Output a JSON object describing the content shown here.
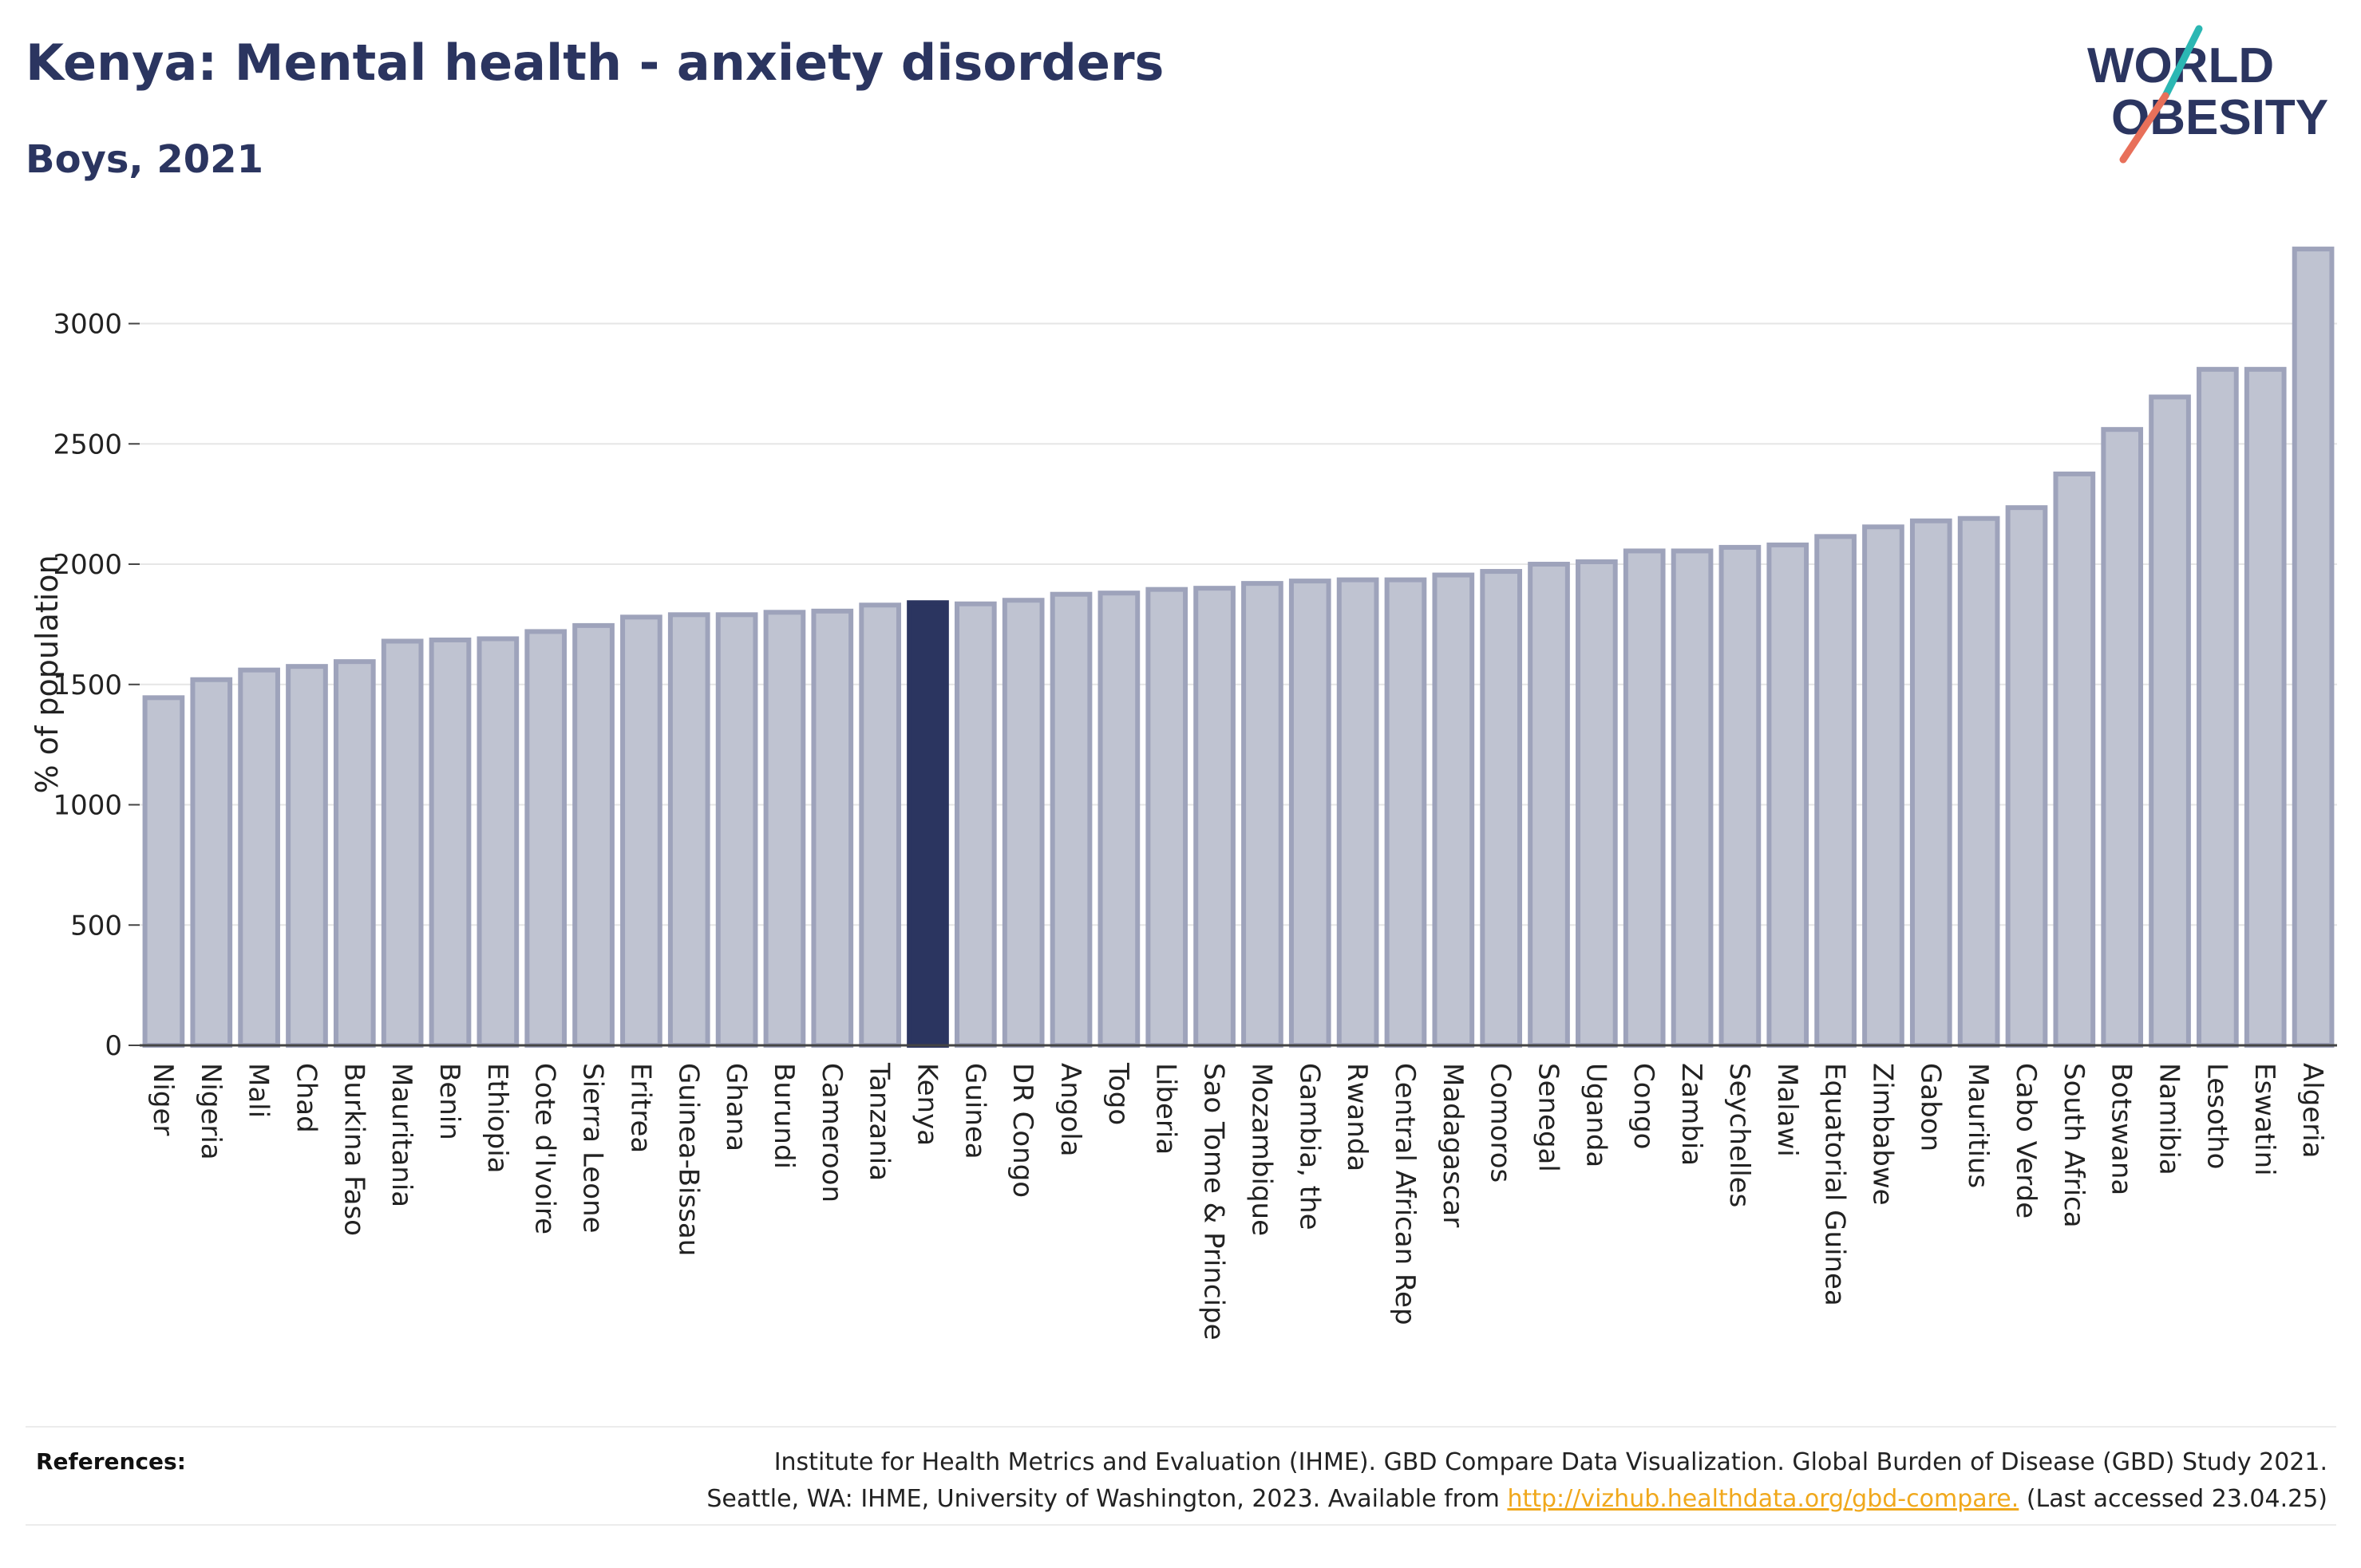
{
  "header": {
    "title": "Kenya: Mental health - anxiety disorders",
    "subtitle": "Boys, 2021"
  },
  "logo": {
    "line1": "WORLD",
    "line2": "OBESITY"
  },
  "references": {
    "label": "References:",
    "line1": "Institute for Health Metrics and Evaluation (IHME). GBD Compare Data Visualization. Global Burden of Disease (GBD) Study 2021.",
    "line2_prefix": "Seattle, WA: IHME, University of Washington, 2023. Available from ",
    "link_text": "http://vizhub.healthdata.org/gbd-compare.",
    "line2_suffix": " (Last accessed 23.04.25)"
  },
  "colors": {
    "highlight": "#2b3560",
    "bar_fill": "#bfc3d1",
    "bar_stroke": "#9ea3bb",
    "grid": "#e6e6e6",
    "logo_teal": "#2bb7b3",
    "logo_coral": "#e8705a"
  },
  "chart_data": {
    "type": "bar",
    "ylabel": "% of population",
    "ylim": [
      0,
      3350
    ],
    "yticks": [
      0,
      500,
      1000,
      1500,
      2000,
      2500,
      3000
    ],
    "highlight": "Kenya",
    "grid": true,
    "categories": [
      "Niger",
      "Nigeria",
      "Mali",
      "Chad",
      "Burkina Faso",
      "Mauritania",
      "Benin",
      "Ethiopia",
      "Cote d'Ivoire",
      "Sierra Leone",
      "Eritrea",
      "Guinea-Bissau",
      "Ghana",
      "Burundi",
      "Cameroon",
      "Tanzania",
      "Kenya",
      "Guinea",
      "DR Congo",
      "Angola",
      "Togo",
      "Liberia",
      "Sao Tome & Principe",
      "Mozambique",
      "Gambia, the",
      "Rwanda",
      "Central African Rep",
      "Madagascar",
      "Comoros",
      "Senegal",
      "Uganda",
      "Congo",
      "Zambia",
      "Seychelles",
      "Malawi",
      "Equatorial Guinea",
      "Zimbabwe",
      "Gabon",
      "Mauritius",
      "Cabo Verde",
      "South Africa",
      "Botswana",
      "Namibia",
      "Lesotho",
      "Eswatini",
      "Algeria"
    ],
    "values": [
      1445,
      1520,
      1560,
      1575,
      1595,
      1680,
      1685,
      1690,
      1720,
      1745,
      1780,
      1790,
      1790,
      1800,
      1805,
      1830,
      1840,
      1835,
      1850,
      1875,
      1880,
      1895,
      1900,
      1920,
      1930,
      1935,
      1935,
      1955,
      1970,
      2000,
      2010,
      2055,
      2055,
      2070,
      2080,
      2115,
      2155,
      2180,
      2190,
      2235,
      2375,
      2560,
      2695,
      2810,
      2810,
      3310
    ]
  }
}
